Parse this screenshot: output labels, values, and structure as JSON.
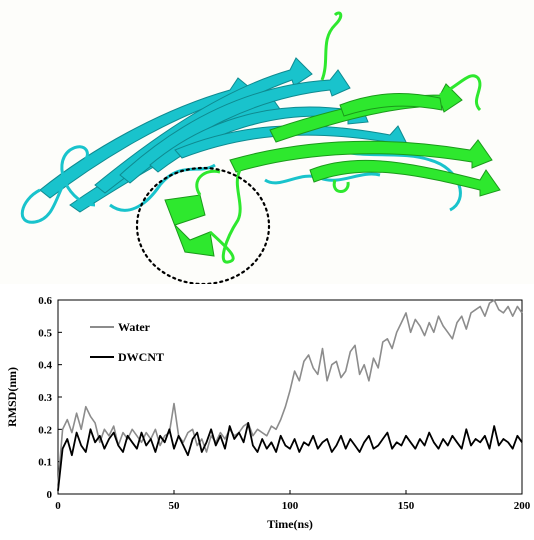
{
  "figure": {
    "structure_colors": {
      "chain_a": "#19c3cc",
      "chain_b": "#2ee82e",
      "highlight_ring": "#000000"
    }
  },
  "chart_data": {
    "type": "line",
    "xlabel": "Time(ns)",
    "ylabel": "RMSD(nm)",
    "xlim": [
      0,
      200
    ],
    "ylim": [
      0,
      0.6
    ],
    "x_ticks": [
      "0",
      "50",
      "100",
      "150",
      "200"
    ],
    "y_ticks": [
      "0",
      "0.1",
      "0.2",
      "0.3",
      "0.4",
      "0.5",
      "0.6"
    ],
    "grid": false,
    "legend_position": "top-left",
    "series": [
      {
        "name": "Water",
        "color": "#8c8c8c",
        "x": [
          0,
          2,
          4,
          6,
          8,
          10,
          12,
          14,
          16,
          18,
          20,
          22,
          24,
          26,
          28,
          30,
          32,
          34,
          36,
          38,
          40,
          42,
          44,
          46,
          48,
          50,
          52,
          54,
          56,
          58,
          60,
          62,
          64,
          66,
          68,
          70,
          72,
          74,
          76,
          78,
          80,
          82,
          84,
          86,
          88,
          90,
          92,
          94,
          96,
          98,
          100,
          102,
          104,
          106,
          108,
          110,
          112,
          114,
          116,
          118,
          120,
          122,
          124,
          126,
          128,
          130,
          132,
          134,
          136,
          138,
          140,
          142,
          144,
          146,
          148,
          150,
          152,
          154,
          156,
          158,
          160,
          162,
          164,
          166,
          168,
          170,
          172,
          174,
          176,
          178,
          180,
          182,
          184,
          186,
          188,
          190,
          192,
          194,
          196,
          198,
          200
        ],
        "values": [
          0.03,
          0.2,
          0.23,
          0.19,
          0.25,
          0.2,
          0.27,
          0.24,
          0.22,
          0.16,
          0.2,
          0.18,
          0.21,
          0.15,
          0.19,
          0.17,
          0.2,
          0.18,
          0.16,
          0.19,
          0.17,
          0.2,
          0.15,
          0.18,
          0.19,
          0.28,
          0.18,
          0.16,
          0.19,
          0.2,
          0.15,
          0.17,
          0.13,
          0.18,
          0.16,
          0.19,
          0.17,
          0.2,
          0.18,
          0.19,
          0.21,
          0.22,
          0.18,
          0.2,
          0.19,
          0.18,
          0.21,
          0.2,
          0.23,
          0.27,
          0.32,
          0.38,
          0.35,
          0.41,
          0.43,
          0.39,
          0.37,
          0.45,
          0.35,
          0.4,
          0.41,
          0.36,
          0.38,
          0.44,
          0.46,
          0.37,
          0.4,
          0.35,
          0.42,
          0.39,
          0.47,
          0.48,
          0.45,
          0.5,
          0.53,
          0.56,
          0.5,
          0.54,
          0.52,
          0.49,
          0.53,
          0.5,
          0.55,
          0.52,
          0.5,
          0.48,
          0.53,
          0.55,
          0.51,
          0.56,
          0.57,
          0.58,
          0.55,
          0.59,
          0.6,
          0.57,
          0.56,
          0.58,
          0.55,
          0.58,
          0.56
        ]
      },
      {
        "name": "DWCNT",
        "color": "#000000",
        "x": [
          0,
          2,
          4,
          6,
          8,
          10,
          12,
          14,
          16,
          18,
          20,
          22,
          24,
          26,
          28,
          30,
          32,
          34,
          36,
          38,
          40,
          42,
          44,
          46,
          48,
          50,
          52,
          54,
          56,
          58,
          60,
          62,
          64,
          66,
          68,
          70,
          72,
          74,
          76,
          78,
          80,
          82,
          84,
          86,
          88,
          90,
          92,
          94,
          96,
          98,
          100,
          102,
          104,
          106,
          108,
          110,
          112,
          114,
          116,
          118,
          120,
          122,
          124,
          126,
          128,
          130,
          132,
          134,
          136,
          138,
          140,
          142,
          144,
          146,
          148,
          150,
          152,
          154,
          156,
          158,
          160,
          162,
          164,
          166,
          168,
          170,
          172,
          174,
          176,
          178,
          180,
          182,
          184,
          186,
          188,
          190,
          192,
          194,
          196,
          198,
          200
        ],
        "values": [
          0.01,
          0.14,
          0.17,
          0.12,
          0.19,
          0.15,
          0.13,
          0.2,
          0.16,
          0.18,
          0.14,
          0.17,
          0.19,
          0.15,
          0.13,
          0.18,
          0.16,
          0.14,
          0.19,
          0.15,
          0.17,
          0.13,
          0.18,
          0.16,
          0.2,
          0.14,
          0.18,
          0.15,
          0.12,
          0.17,
          0.19,
          0.13,
          0.16,
          0.2,
          0.15,
          0.18,
          0.14,
          0.21,
          0.17,
          0.19,
          0.16,
          0.22,
          0.15,
          0.13,
          0.17,
          0.14,
          0.16,
          0.13,
          0.18,
          0.15,
          0.14,
          0.17,
          0.13,
          0.16,
          0.15,
          0.18,
          0.14,
          0.16,
          0.17,
          0.13,
          0.15,
          0.18,
          0.14,
          0.17,
          0.15,
          0.13,
          0.16,
          0.18,
          0.14,
          0.15,
          0.17,
          0.19,
          0.14,
          0.16,
          0.15,
          0.18,
          0.16,
          0.14,
          0.17,
          0.15,
          0.19,
          0.16,
          0.14,
          0.17,
          0.15,
          0.18,
          0.16,
          0.14,
          0.2,
          0.15,
          0.17,
          0.16,
          0.18,
          0.14,
          0.21,
          0.15,
          0.17,
          0.16,
          0.14,
          0.18,
          0.16
        ]
      }
    ]
  }
}
